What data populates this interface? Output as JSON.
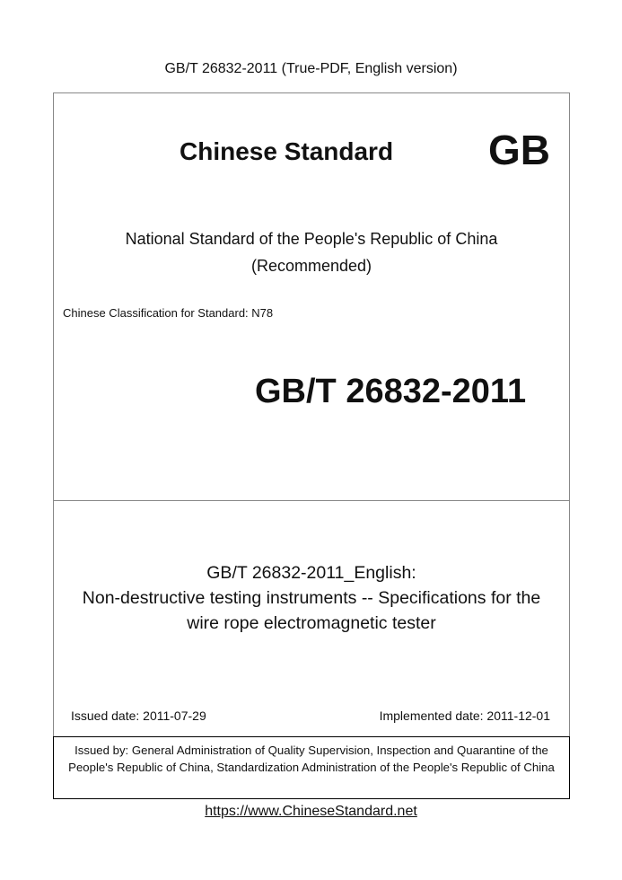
{
  "header": "GB/T 26832-2011 (True-PDF, English version)",
  "cover": {
    "heading": "Chinese Standard",
    "badge": "GB",
    "national_line1": "National Standard of the People's Republic of China",
    "national_line2": "(Recommended)",
    "classification": "Chinese Classification for Standard: N78",
    "code": "GB/T 26832-2011"
  },
  "title": {
    "line1": "GB/T 26832-2011_English:",
    "line2": "Non-destructive testing instruments -- Specifications for the",
    "line3": "wire rope electromagnetic tester"
  },
  "dates": {
    "issued": "Issued date: 2011-07-29",
    "implemented": "Implemented date: 2011-12-01"
  },
  "issuer": "Issued by: General Administration of Quality Supervision, Inspection and Quarantine of the People's Republic of China, Standardization Administration of the People's Republic of China",
  "footer_link": "https://www.ChineseStandard.net"
}
